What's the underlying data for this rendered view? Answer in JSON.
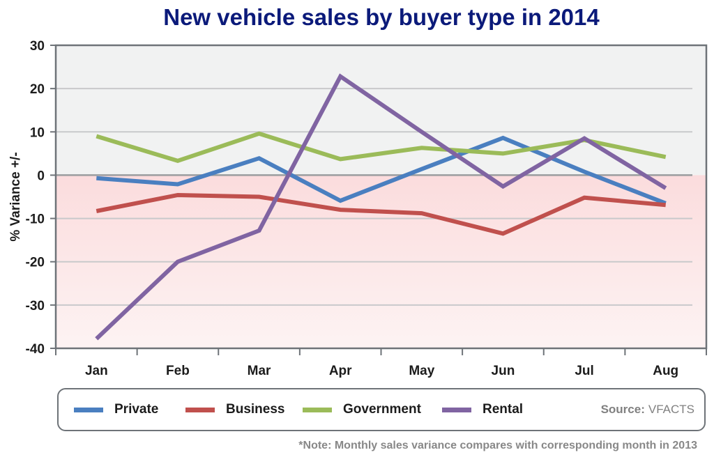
{
  "chart_data": {
    "type": "line",
    "title": "New vehicle sales by buyer type in 2014",
    "ylabel": "% Variance +/-",
    "xlabel": "",
    "ylim": [
      -40,
      30
    ],
    "yticks": [
      30,
      20,
      10,
      0,
      -10,
      -20,
      -30,
      -40
    ],
    "categories": [
      "Jan",
      "Feb",
      "Mar",
      "Apr",
      "May",
      "Jun",
      "Jul",
      "Aug"
    ],
    "grid": true,
    "series": [
      {
        "name": "Private",
        "color": "#4a7fc0",
        "values": [
          -0.7,
          -2.1,
          3.9,
          -5.9,
          1.4,
          8.6,
          0.8,
          -6.5
        ]
      },
      {
        "name": "Business",
        "color": "#c0504d",
        "values": [
          -8.3,
          -4.6,
          -5.0,
          -8.0,
          -8.8,
          -13.5,
          -5.2,
          -6.9
        ]
      },
      {
        "name": "Government",
        "color": "#9bbb59",
        "values": [
          9.0,
          3.3,
          9.6,
          3.7,
          6.3,
          5.0,
          8.1,
          4.2
        ]
      },
      {
        "name": "Rental",
        "color": "#8064a2",
        "values": [
          -37.8,
          -20.0,
          -12.8,
          22.8,
          10.0,
          -2.6,
          8.5,
          -3.0
        ]
      }
    ]
  },
  "legend_entries": [
    {
      "label": "Private",
      "color": "#4a7fc0"
    },
    {
      "label": "Business",
      "color": "#c0504d"
    },
    {
      "label": "Government",
      "color": "#9bbb59"
    },
    {
      "label": "Rental",
      "color": "#8064a2"
    }
  ],
  "source": {
    "label": "Source:",
    "value": "VFACTS"
  },
  "note": "*Note: Monthly sales variance compares with corresponding month in 2013"
}
